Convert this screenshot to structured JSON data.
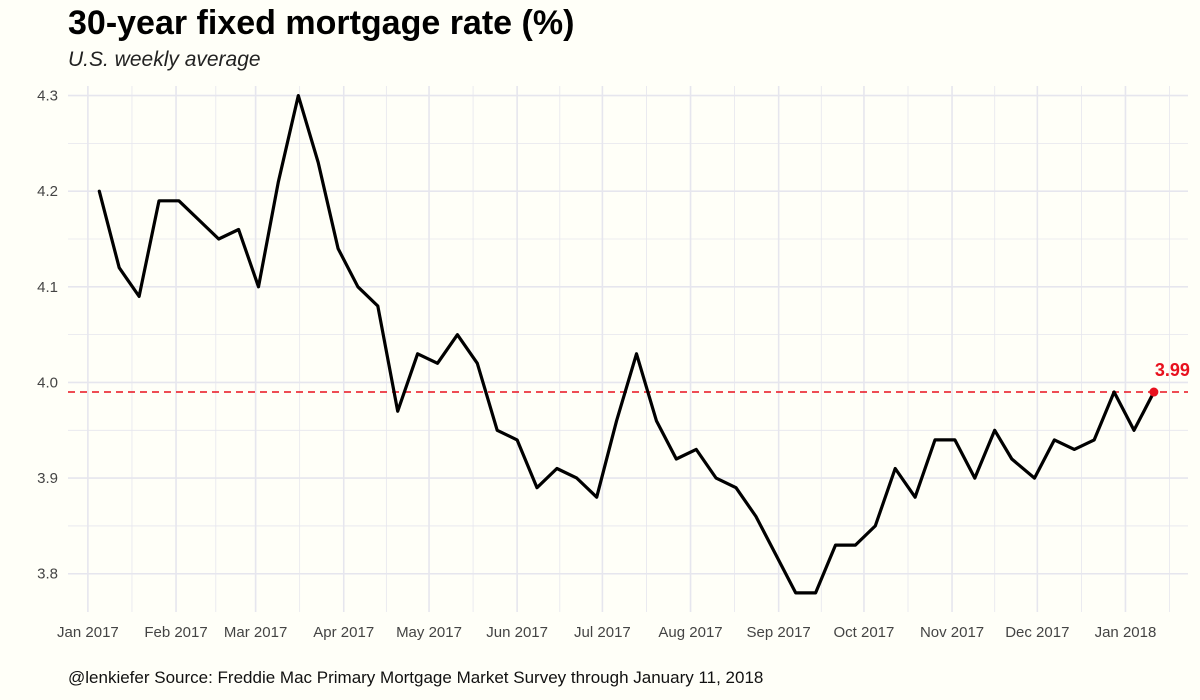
{
  "header": {
    "title": "30-year fixed mortgage rate (%)",
    "subtitle": "U.S. weekly average"
  },
  "footer": {
    "caption": "@lenkiefer Source: Freddie Mac Primary Mortgage Market Survey through January 11, 2018"
  },
  "colors": {
    "line": "#000000",
    "reference": "#e8111e",
    "grid": "#e6e6ee",
    "background": "#fffff8"
  },
  "chart_data": {
    "type": "line",
    "title": "30-year fixed mortgage rate (%)",
    "subtitle": "U.S. weekly average",
    "xlabel": "",
    "ylabel": "",
    "ylim": [
      3.76,
      4.31
    ],
    "xlim": [
      "2016-12-25",
      "2018-01-23"
    ],
    "y_ticks": [
      3.8,
      3.9,
      4.0,
      4.1,
      4.2,
      4.3
    ],
    "y_tick_labels": [
      "3.8",
      "3.9",
      "4.0",
      "4.1",
      "4.2",
      "4.3"
    ],
    "x_ticks": [
      "2017-01-01",
      "2017-02-01",
      "2017-03-01",
      "2017-04-01",
      "2017-05-01",
      "2017-06-01",
      "2017-07-01",
      "2017-08-01",
      "2017-09-01",
      "2017-10-01",
      "2017-11-01",
      "2017-12-01",
      "2018-01-01"
    ],
    "x_tick_labels": [
      "Jan 2017",
      "Feb 2017",
      "Mar 2017",
      "Apr 2017",
      "May 2017",
      "Jun 2017",
      "Jul 2017",
      "Aug 2017",
      "Sep 2017",
      "Oct 2017",
      "Nov 2017",
      "Dec 2017",
      "Jan 2018"
    ],
    "grid": true,
    "legend": "none",
    "series": [
      {
        "x": [
          "2017-01-05",
          "2017-01-12",
          "2017-01-19",
          "2017-01-26",
          "2017-02-02",
          "2017-02-09",
          "2017-02-16",
          "2017-02-23",
          "2017-03-02",
          "2017-03-09",
          "2017-03-16",
          "2017-03-23",
          "2017-03-30",
          "2017-04-06",
          "2017-04-13",
          "2017-04-20",
          "2017-04-27",
          "2017-05-04",
          "2017-05-11",
          "2017-05-18",
          "2017-05-25",
          "2017-06-01",
          "2017-06-08",
          "2017-06-15",
          "2017-06-22",
          "2017-06-29",
          "2017-07-06",
          "2017-07-13",
          "2017-07-20",
          "2017-07-27",
          "2017-08-03",
          "2017-08-10",
          "2017-08-17",
          "2017-08-24",
          "2017-08-31",
          "2017-09-07",
          "2017-09-14",
          "2017-09-21",
          "2017-09-28",
          "2017-10-05",
          "2017-10-12",
          "2017-10-19",
          "2017-10-26",
          "2017-11-02",
          "2017-11-09",
          "2017-11-16",
          "2017-11-22",
          "2017-11-30",
          "2017-12-07",
          "2017-12-14",
          "2017-12-21",
          "2017-12-28",
          "2018-01-04",
          "2018-01-11"
        ],
        "values": [
          4.2,
          4.12,
          4.09,
          4.19,
          4.19,
          4.17,
          4.15,
          4.16,
          4.1,
          4.21,
          4.3,
          4.23,
          4.14,
          4.1,
          4.08,
          3.97,
          4.03,
          4.02,
          4.05,
          4.02,
          3.95,
          3.94,
          3.89,
          3.91,
          3.9,
          3.88,
          3.96,
          4.03,
          3.96,
          3.92,
          3.93,
          3.9,
          3.89,
          3.86,
          3.82,
          3.78,
          3.78,
          3.83,
          3.83,
          3.85,
          3.91,
          3.88,
          3.94,
          3.94,
          3.9,
          3.95,
          3.92,
          3.9,
          3.94,
          3.93,
          3.94,
          3.99,
          3.95,
          3.99
        ]
      }
    ],
    "reference_line": {
      "y": 3.99,
      "style": "dashed"
    },
    "annotations": [
      {
        "x": "2018-01-11",
        "y": 3.99,
        "label": "3.99"
      }
    ]
  }
}
